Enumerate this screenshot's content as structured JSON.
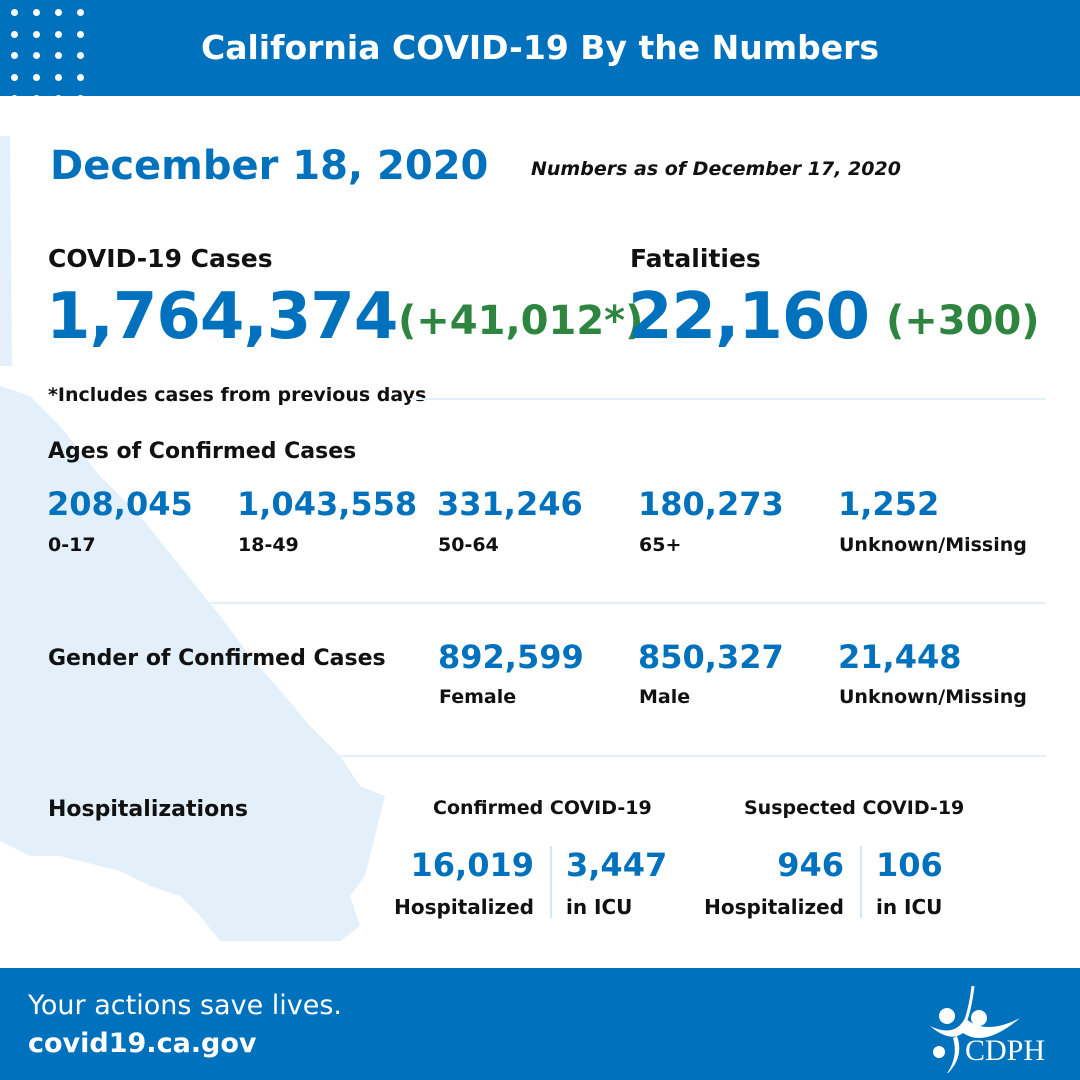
{
  "header": {
    "title": "California COVID-19 By the Numbers"
  },
  "date": "December 18, 2020",
  "as_of": "Numbers as of December 17, 2020",
  "cases": {
    "label": "COVID-19 Cases",
    "total": "1,764,374",
    "change": "(+41,012*)",
    "note": "*Includes cases from previous days"
  },
  "fatalities": {
    "label": "Fatalities",
    "total": "22,160",
    "change": "(+300)"
  },
  "ages": {
    "label": "Ages of Confirmed Cases",
    "items": [
      {
        "value": "208,045",
        "label": "0-17"
      },
      {
        "value": "1,043,558",
        "label": "18-49"
      },
      {
        "value": "331,246",
        "label": "50-64"
      },
      {
        "value": "180,273",
        "label": "65+"
      },
      {
        "value": "1,252",
        "label": "Unknown/Missing"
      }
    ]
  },
  "gender": {
    "label": "Gender of Confirmed Cases",
    "items": [
      {
        "value": "892,599",
        "label": "Female"
      },
      {
        "value": "850,327",
        "label": "Male"
      },
      {
        "value": "21,448",
        "label": "Unknown/Missing"
      }
    ]
  },
  "hosp": {
    "label": "Hospitalizations",
    "confirmed": {
      "label": "Confirmed COVID-19",
      "hospitalized": "16,019",
      "hosp_label": "Hospitalized",
      "icu": "3,447",
      "icu_label": "in ICU"
    },
    "suspected": {
      "label": "Suspected COVID-19",
      "hospitalized": "946",
      "hosp_label": "Hospitalized",
      "icu": "106",
      "icu_label": "in ICU"
    }
  },
  "footer": {
    "tagline": "Your actions save lives.",
    "url": "covid19.ca.gov",
    "logo_text": "CDPH"
  },
  "colors": {
    "brand_blue": "#0071bc",
    "green": "#2e8540",
    "map": "#e3f0fa"
  }
}
